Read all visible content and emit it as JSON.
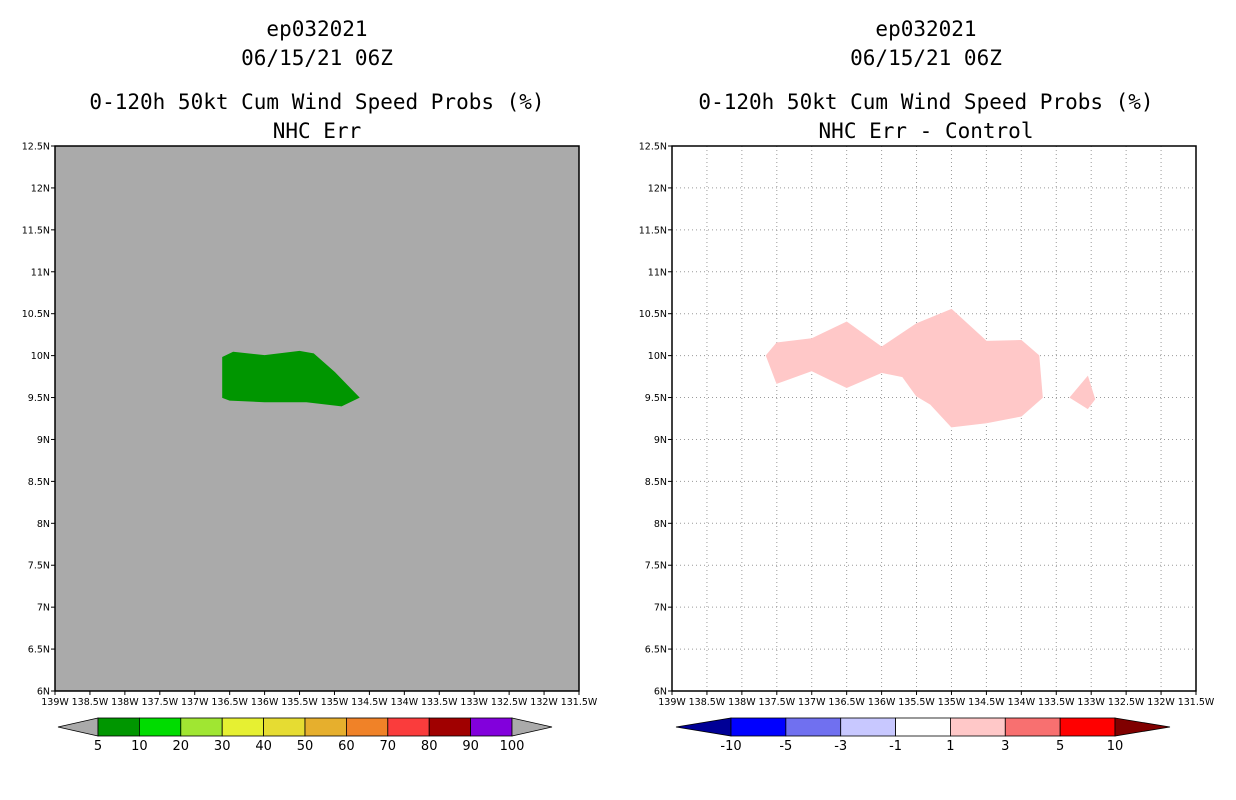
{
  "chart_data": [
    {
      "type": "heatmap",
      "storm_id": "ep032021",
      "datetime": "06/15/21 06Z",
      "title": "0-120h 50kt Cum Wind Speed Probs (%)",
      "subtitle": "NHC Err",
      "background_color": "#aaaaaa",
      "xlim": [
        -139,
        -131.5
      ],
      "ylim": [
        6,
        12.5
      ],
      "x_ticks": [
        "139W",
        "138.5W",
        "138W",
        "137.5W",
        "137W",
        "136.5W",
        "136W",
        "135.5W",
        "135W",
        "134.5W",
        "134W",
        "133.5W",
        "133W",
        "132.5W",
        "132W",
        "131.5W"
      ],
      "y_ticks": [
        "6N",
        "6.5N",
        "7N",
        "7.5N",
        "8N",
        "8.5N",
        "9N",
        "9.5N",
        "10N",
        "10.5N",
        "11N",
        "11.5N",
        "12N",
        "12.5N"
      ],
      "grid": false,
      "regions": [
        {
          "level": "5-10",
          "color": "#009600",
          "polygon": [
            [
              -136.6,
              9.98
            ],
            [
              -136.45,
              10.04
            ],
            [
              -136.0,
              10.0
            ],
            [
              -135.5,
              10.05
            ],
            [
              -135.3,
              10.02
            ],
            [
              -135.0,
              9.8
            ],
            [
              -134.65,
              9.5
            ],
            [
              -134.9,
              9.4
            ],
            [
              -135.4,
              9.45
            ],
            [
              -136.0,
              9.45
            ],
            [
              -136.5,
              9.47
            ],
            [
              -136.6,
              9.5
            ]
          ]
        }
      ],
      "colorbar": {
        "labels": [
          "5",
          "10",
          "20",
          "30",
          "40",
          "50",
          "60",
          "70",
          "80",
          "90",
          "100"
        ],
        "colors": [
          "#009600",
          "#00dc00",
          "#a0e632",
          "#e6f032",
          "#e6dc32",
          "#e6af2d",
          "#f08228",
          "#fa3c3c",
          "#a00000",
          "#8200dc"
        ],
        "under_color": "#aaaaaa",
        "over_color": "#aaaaaa"
      }
    },
    {
      "type": "heatmap",
      "storm_id": "ep032021",
      "datetime": "06/15/21 06Z",
      "title": "0-120h 50kt Cum Wind Speed Probs (%)",
      "subtitle": "NHC Err - Control",
      "background_color": "#ffffff",
      "xlim": [
        -139,
        -131.5
      ],
      "ylim": [
        6,
        12.5
      ],
      "x_ticks": [
        "139W",
        "138.5W",
        "138W",
        "137.5W",
        "137W",
        "136.5W",
        "136W",
        "135.5W",
        "135W",
        "134.5W",
        "134W",
        "133.5W",
        "133W",
        "132.5W",
        "132W",
        "131.5W"
      ],
      "y_ticks": [
        "6N",
        "6.5N",
        "7N",
        "7.5N",
        "8N",
        "8.5N",
        "9N",
        "9.5N",
        "10N",
        "10.5N",
        "11N",
        "11.5N",
        "12N",
        "12.5N"
      ],
      "grid": true,
      "regions": [
        {
          "level": "1-3",
          "color": "#ffc8c8",
          "polygon": [
            [
              -137.65,
              10.0
            ],
            [
              -137.5,
              10.15
            ],
            [
              -137.0,
              10.2
            ],
            [
              -136.5,
              10.4
            ],
            [
              -136.0,
              10.1
            ],
            [
              -135.5,
              10.38
            ],
            [
              -135.0,
              10.55
            ],
            [
              -134.5,
              10.17
            ],
            [
              -134.0,
              10.18
            ],
            [
              -133.75,
              10.0
            ],
            [
              -133.7,
              9.5
            ],
            [
              -134.0,
              9.28
            ],
            [
              -134.5,
              9.2
            ],
            [
              -135.0,
              9.15
            ],
            [
              -135.3,
              9.42
            ],
            [
              -135.5,
              9.52
            ],
            [
              -135.7,
              9.75
            ],
            [
              -136.0,
              9.8
            ],
            [
              -136.5,
              9.62
            ],
            [
              -137.0,
              9.82
            ],
            [
              -137.5,
              9.67
            ]
          ]
        },
        {
          "level": "1-3",
          "color": "#ffc8c8",
          "polygon": [
            [
              -133.3,
              9.5
            ],
            [
              -133.05,
              9.75
            ],
            [
              -132.95,
              9.48
            ],
            [
              -133.05,
              9.37
            ]
          ]
        }
      ],
      "colorbar": {
        "labels": [
          "-10",
          "-5",
          "-3",
          "-1",
          "1",
          "3",
          "5",
          "10"
        ],
        "colors": [
          "#0000ff",
          "#7070f0",
          "#c8c8ff",
          "#ffffff",
          "#ffc8c8",
          "#f87070",
          "#ff0000"
        ],
        "under_color": "#000096",
        "over_color": "#800000"
      }
    }
  ]
}
